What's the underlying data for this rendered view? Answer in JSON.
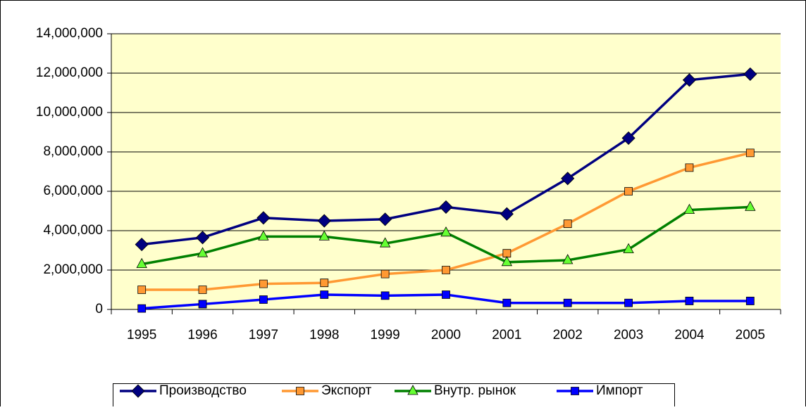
{
  "chart_data": {
    "type": "line",
    "categories": [
      "1995",
      "1996",
      "1997",
      "1998",
      "1999",
      "2000",
      "2001",
      "2002",
      "2003",
      "2004",
      "2005"
    ],
    "series": [
      {
        "name": "Производство",
        "color": "#000080",
        "marker": "diamond",
        "marker_color": "#000080",
        "values": [
          3300000,
          3650000,
          4650000,
          4500000,
          4580000,
          5200000,
          4850000,
          6650000,
          8700000,
          11650000,
          11950000
        ]
      },
      {
        "name": "Экспорт",
        "color": "#FF9933",
        "marker": "square",
        "marker_color": "#FF9933",
        "values": [
          1000000,
          1000000,
          1300000,
          1350000,
          1800000,
          2000000,
          2850000,
          4350000,
          6000000,
          7200000,
          7950000
        ]
      },
      {
        "name": "Внутр. рынок",
        "color": "#008000",
        "marker": "triangle",
        "marker_color": "#66FF33",
        "values": [
          2300000,
          2850000,
          3700000,
          3700000,
          3350000,
          3900000,
          2400000,
          2500000,
          3050000,
          5050000,
          5200000
        ]
      },
      {
        "name": "Импорт",
        "color": "#0000FF",
        "marker": "square",
        "marker_color": "#0000FF",
        "values": [
          50000,
          270000,
          500000,
          750000,
          700000,
          750000,
          330000,
          330000,
          330000,
          430000,
          430000
        ]
      }
    ],
    "ylim": [
      0,
      14000000
    ],
    "yticks": [
      0,
      {
        "value": 2000000,
        "label": "2,000,000"
      },
      {
        "value": 4000000,
        "label": "4,000,000"
      },
      {
        "value": 6000000,
        "label": "6,000,000"
      },
      {
        "value": 8000000,
        "label": "8,000,000"
      },
      {
        "value": 10000000,
        "label": "10,000,000"
      },
      {
        "value": 12000000,
        "label": "12,000,000"
      },
      {
        "value": 14000000,
        "label": "14,000,000"
      }
    ],
    "grid": true,
    "plot_background": "#FFFFCC",
    "legend": "bottom"
  }
}
